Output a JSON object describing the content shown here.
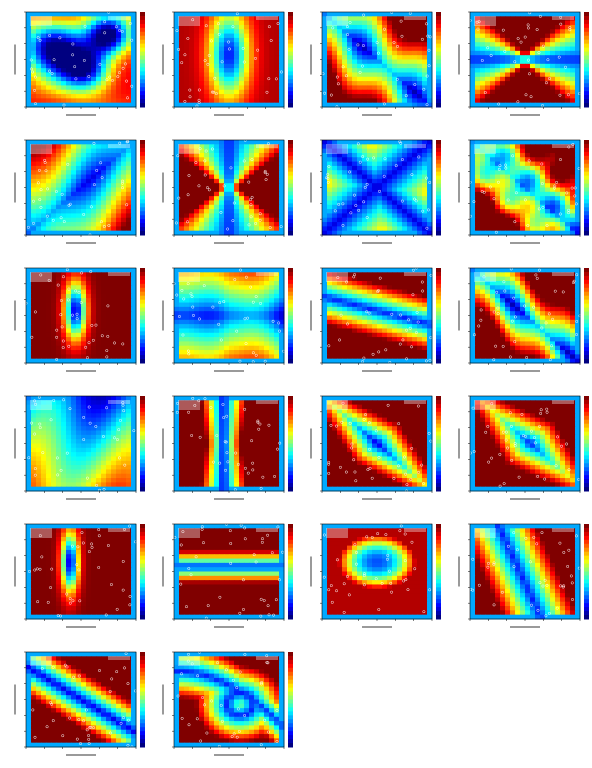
{
  "figure": {
    "title": "",
    "note": ""
  },
  "chart_data": [
    {
      "type": "heatmap",
      "panel": 1,
      "title": "",
      "xlabel": "",
      "ylabel": "",
      "style": "blob-cross",
      "colormap": "jet"
    },
    {
      "type": "heatmap",
      "panel": 2,
      "title": "",
      "xlabel": "",
      "ylabel": "",
      "style": "center-vertical",
      "colormap": "jet"
    },
    {
      "type": "heatmap",
      "panel": 3,
      "title": "",
      "xlabel": "",
      "ylabel": "",
      "style": "diagonal-blobs",
      "colormap": "jet"
    },
    {
      "type": "heatmap",
      "panel": 4,
      "title": "",
      "xlabel": "",
      "ylabel": "",
      "style": "bowtie-horizontal",
      "colormap": "jet"
    },
    {
      "type": "heatmap",
      "panel": 5,
      "title": "",
      "xlabel": "",
      "ylabel": "",
      "style": "diagonal-cool",
      "colormap": "jet"
    },
    {
      "type": "heatmap",
      "panel": 6,
      "title": "",
      "xlabel": "",
      "ylabel": "",
      "style": "bowtie-hourglass",
      "colormap": "jet"
    },
    {
      "type": "heatmap",
      "panel": 7,
      "title": "",
      "xlabel": "",
      "ylabel": "",
      "style": "diagonal-cross",
      "colormap": "jet"
    },
    {
      "type": "heatmap",
      "panel": 8,
      "title": "",
      "xlabel": "",
      "ylabel": "",
      "style": "diagonal-dots",
      "colormap": "jet"
    },
    {
      "type": "heatmap",
      "panel": 9,
      "title": "",
      "xlabel": "",
      "ylabel": "",
      "style": "center-vertical-thin",
      "colormap": "jet"
    },
    {
      "type": "heatmap",
      "panel": 10,
      "title": "",
      "xlabel": "",
      "ylabel": "",
      "style": "hourglass-cool",
      "colormap": "jet"
    },
    {
      "type": "heatmap",
      "panel": 11,
      "title": "",
      "xlabel": "",
      "ylabel": "",
      "style": "horizontal-diagonal",
      "colormap": "jet"
    },
    {
      "type": "heatmap",
      "panel": 12,
      "title": "",
      "xlabel": "",
      "ylabel": "",
      "style": "diagonal-ring",
      "colormap": "jet"
    },
    {
      "type": "heatmap",
      "panel": 13,
      "title": "",
      "xlabel": "",
      "ylabel": "",
      "style": "cool-field",
      "colormap": "jet"
    },
    {
      "type": "heatmap",
      "panel": 14,
      "title": "",
      "xlabel": "",
      "ylabel": "",
      "style": "vertical-band",
      "colormap": "jet"
    },
    {
      "type": "heatmap",
      "panel": 15,
      "title": "",
      "xlabel": "",
      "ylabel": "",
      "style": "diagonal-band",
      "colormap": "jet"
    },
    {
      "type": "heatmap",
      "panel": 16,
      "title": "",
      "xlabel": "",
      "ylabel": "",
      "style": "diagonal-band-2",
      "colormap": "jet"
    },
    {
      "type": "heatmap",
      "panel": 17,
      "title": "",
      "xlabel": "",
      "ylabel": "",
      "style": "thin-vertical",
      "colormap": "jet"
    },
    {
      "type": "heatmap",
      "panel": 18,
      "title": "",
      "xlabel": "",
      "ylabel": "",
      "style": "horizontal-band",
      "colormap": "jet"
    },
    {
      "type": "heatmap",
      "panel": 19,
      "title": "",
      "xlabel": "",
      "ylabel": "",
      "style": "ellipse-ring",
      "colormap": "jet"
    },
    {
      "type": "heatmap",
      "panel": 20,
      "title": "",
      "xlabel": "",
      "ylabel": "",
      "style": "box-diagonal",
      "colormap": "jet"
    },
    {
      "type": "heatmap",
      "panel": 21,
      "title": "",
      "xlabel": "",
      "ylabel": "",
      "style": "diagonal-stripe",
      "colormap": "jet"
    },
    {
      "type": "heatmap",
      "panel": 22,
      "title": "",
      "xlabel": "",
      "ylabel": "",
      "style": "loop",
      "colormap": "jet"
    }
  ]
}
